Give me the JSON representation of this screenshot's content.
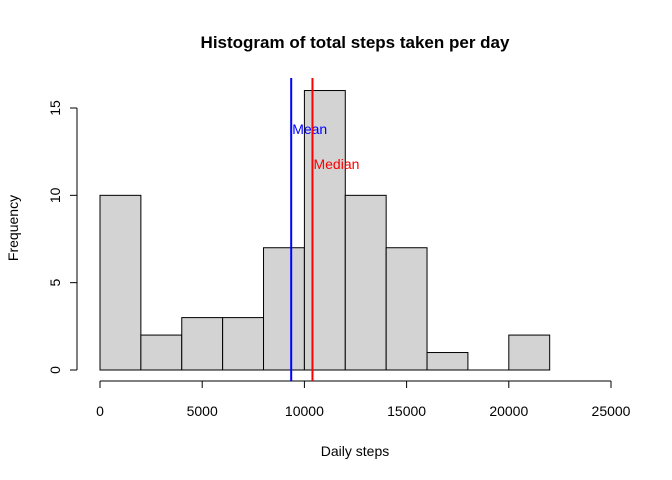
{
  "chart_data": {
    "type": "bar",
    "title": "Histogram of total steps taken per day",
    "xlabel": "Daily steps",
    "ylabel": "Frequency",
    "bins": [
      {
        "start": 0,
        "end": 2000,
        "count": 10
      },
      {
        "start": 2000,
        "end": 4000,
        "count": 2
      },
      {
        "start": 4000,
        "end": 6000,
        "count": 3
      },
      {
        "start": 6000,
        "end": 8000,
        "count": 3
      },
      {
        "start": 8000,
        "end": 10000,
        "count": 7
      },
      {
        "start": 10000,
        "end": 12000,
        "count": 16
      },
      {
        "start": 12000,
        "end": 14000,
        "count": 10
      },
      {
        "start": 14000,
        "end": 16000,
        "count": 7
      },
      {
        "start": 16000,
        "end": 18000,
        "count": 1
      },
      {
        "start": 18000,
        "end": 20000,
        "count": 0
      },
      {
        "start": 20000,
        "end": 22000,
        "count": 2
      }
    ],
    "xlim": [
      0,
      25000
    ],
    "ylim": [
      0,
      16
    ],
    "xticks": [
      0,
      5000,
      10000,
      15000,
      20000,
      25000
    ],
    "xtick_labels": [
      "0",
      "5000",
      "10000",
      "15000",
      "20000",
      "25000"
    ],
    "yticks": [
      0,
      5,
      10,
      15
    ],
    "ytick_labels": [
      "0",
      "5",
      "10",
      "15"
    ],
    "reference_lines": [
      {
        "name": "mean",
        "label": "Mean",
        "x": 9354,
        "color": "#0000ff",
        "label_y": 13.8
      },
      {
        "name": "median",
        "label": "Median",
        "x": 10395,
        "color": "#ff0000",
        "label_y": 11.8
      }
    ],
    "grid": false,
    "bar_fill": "#d3d3d3",
    "bar_stroke": "#000000"
  }
}
